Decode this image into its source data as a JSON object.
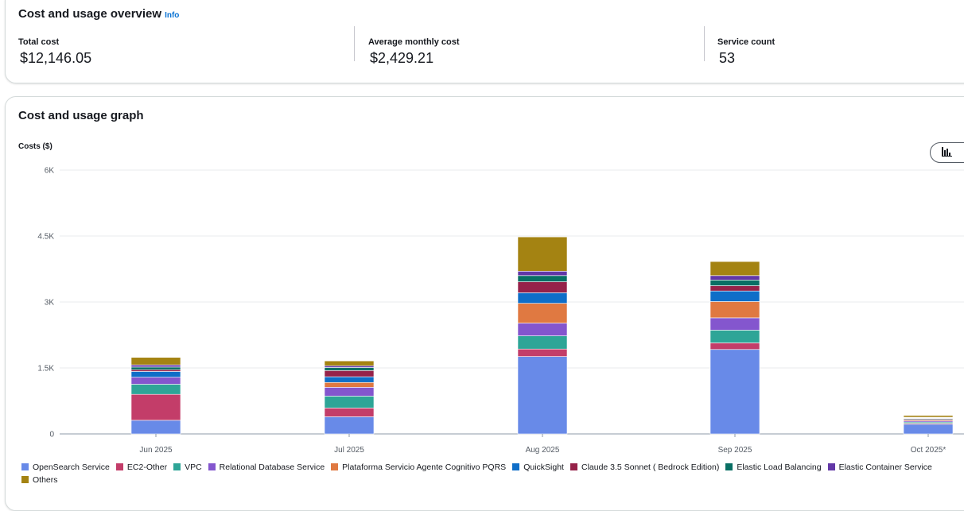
{
  "overview": {
    "title": "Cost and usage overview",
    "info": "Info",
    "metrics": [
      {
        "label": "Total cost",
        "value": "$12,146.05"
      },
      {
        "label": "Average monthly cost",
        "value": "$2,429.21"
      },
      {
        "label": "Service count",
        "value": "53"
      }
    ]
  },
  "graph": {
    "title": "Cost and usage graph",
    "chart_type_icon": "bar-chart-icon"
  },
  "chart_data": {
    "type": "bar",
    "stacked": true,
    "title": "",
    "ylabel": "Costs ($)",
    "xlabel": "",
    "ylim": [
      0,
      6000
    ],
    "yticks": [
      0,
      1500,
      3000,
      4500,
      6000
    ],
    "ytick_labels": [
      "0",
      "1.5K",
      "3K",
      "4.5K",
      "6K"
    ],
    "grid": true,
    "legend_position": "bottom",
    "categories": [
      "Jun 2025",
      "Jul 2025",
      "Aug 2025",
      "Sep 2025",
      "Oct 2025*"
    ],
    "series": [
      {
        "name": "OpenSearch Service",
        "color": "#688ae8",
        "values": [
          310,
          390,
          1760,
          1920,
          220
        ]
      },
      {
        "name": "EC2-Other",
        "color": "#c33d69",
        "values": [
          590,
          200,
          170,
          150,
          20
        ]
      },
      {
        "name": "VPC",
        "color": "#2ea597",
        "values": [
          230,
          270,
          300,
          290,
          30
        ]
      },
      {
        "name": "Relational Database Service",
        "color": "#8456ce",
        "values": [
          160,
          200,
          290,
          280,
          30
        ]
      },
      {
        "name": "Plataforma Servicio Agente Cognitivo PQRS",
        "color": "#e07941",
        "values": [
          0,
          110,
          450,
          370,
          30
        ]
      },
      {
        "name": "QuickSight",
        "color": "#0f6ec8",
        "values": [
          130,
          130,
          240,
          240,
          20
        ]
      },
      {
        "name": "Claude 3.5 Sonnet ( Bedrock Edition)",
        "color": "#962249",
        "values": [
          40,
          140,
          250,
          120,
          10
        ]
      },
      {
        "name": "Elastic Load Balancing",
        "color": "#096f64",
        "values": [
          60,
          70,
          140,
          130,
          10
        ]
      },
      {
        "name": "Elastic Container Service",
        "color": "#6237a7",
        "values": [
          50,
          40,
          100,
          100,
          10
        ]
      },
      {
        "name": "Others",
        "color": "#a48312",
        "values": [
          170,
          110,
          780,
          320,
          40
        ]
      }
    ]
  }
}
